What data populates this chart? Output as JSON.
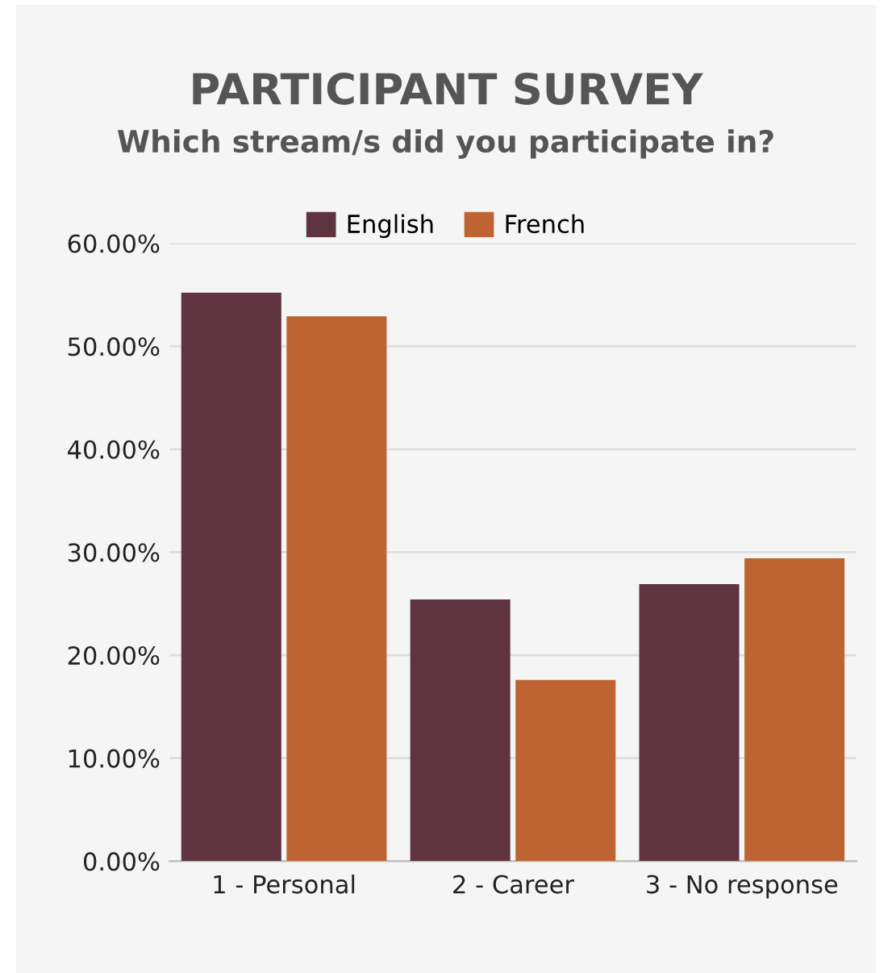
{
  "chart_data": {
    "type": "bar",
    "title": "PARTICIPANT SURVEY",
    "subtitle": "Which stream/s did you participate in?",
    "categories": [
      "1 - Personal",
      "2 - Career",
      "3 - No response"
    ],
    "series": [
      {
        "name": "English",
        "color": "#5f3440",
        "values": [
          55.2,
          25.4,
          26.9
        ]
      },
      {
        "name": "French",
        "color": "#bd6432",
        "values": [
          52.9,
          17.6,
          29.4
        ]
      }
    ],
    "ylim": [
      0,
      60
    ],
    "yticks": [
      {
        "value": 0,
        "label": "0.00%"
      },
      {
        "value": 10,
        "label": "10.00%"
      },
      {
        "value": 20,
        "label": "20.00%"
      },
      {
        "value": 30,
        "label": "30.00%"
      },
      {
        "value": 40,
        "label": "40.00%"
      },
      {
        "value": 50,
        "label": "50.00%"
      },
      {
        "value": 60,
        "label": "60.00%"
      }
    ],
    "grid": "y",
    "legend": "top"
  }
}
